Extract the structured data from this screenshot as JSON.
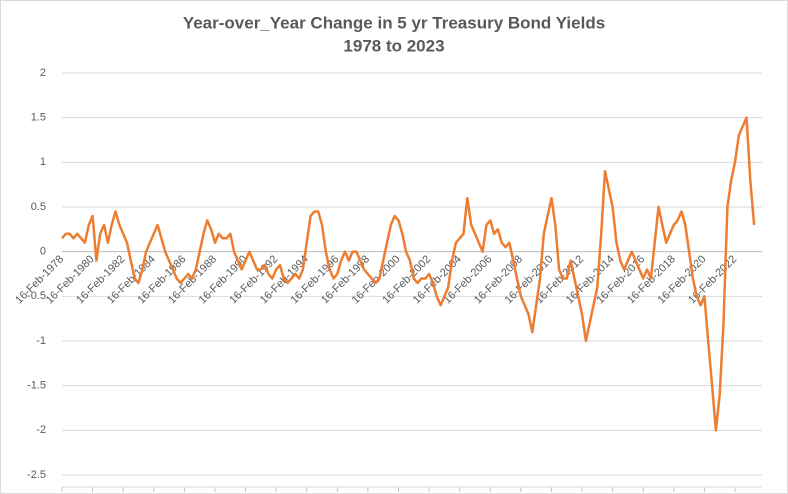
{
  "chart_data": {
    "type": "line",
    "title": "Year-over_Year Change in 5 yr Treasury Bond Yields",
    "subtitle": "1978 to 2023",
    "color": "#ed7d31",
    "grid": true,
    "ylim": [
      -2.5,
      2
    ],
    "yticks": [
      2,
      1.5,
      1,
      0.5,
      0,
      -0.5,
      -1,
      -1.5,
      -2,
      -2.5
    ],
    "categories": [
      "16-Feb-1978",
      null,
      null,
      null,
      null,
      null,
      null,
      null,
      "16-Feb-1980",
      null,
      null,
      null,
      null,
      null,
      null,
      null,
      "16-Feb-1982",
      null,
      null,
      null,
      null,
      null,
      null,
      null,
      "16-Feb-1984",
      null,
      null,
      null,
      null,
      null,
      null,
      null,
      "16-Feb-1986",
      null,
      null,
      null,
      null,
      null,
      null,
      null,
      "16-Feb-1988",
      null,
      null,
      null,
      null,
      null,
      null,
      null,
      "16-Feb-1990",
      null,
      null,
      null,
      null,
      null,
      null,
      null,
      "16-Feb-1992",
      null,
      null,
      null,
      null,
      null,
      null,
      null,
      "16-Feb-1994",
      null,
      null,
      null,
      null,
      null,
      null,
      null,
      "16-Feb-1996",
      null,
      null,
      null,
      null,
      null,
      null,
      null,
      "16-Feb-1998",
      null,
      null,
      null,
      null,
      null,
      null,
      null,
      "16-Feb-2000",
      null,
      null,
      null,
      null,
      null,
      null,
      null,
      "16-Feb-2002",
      null,
      null,
      null,
      null,
      null,
      null,
      null,
      "16-Feb-2004",
      null,
      null,
      null,
      null,
      null,
      null,
      null,
      "16-Feb-2006",
      null,
      null,
      null,
      null,
      null,
      null,
      null,
      "16-Feb-2008",
      null,
      null,
      null,
      null,
      null,
      null,
      null,
      "16-Feb-2010",
      null,
      null,
      null,
      null,
      null,
      null,
      null,
      "16-Feb-2012",
      null,
      null,
      null,
      null,
      null,
      null,
      null,
      "16-Feb-2014",
      null,
      null,
      null,
      null,
      null,
      null,
      null,
      "16-Feb-2016",
      null,
      null,
      null,
      null,
      null,
      null,
      null,
      "16-Feb-2018",
      null,
      null,
      null,
      null,
      null,
      null,
      null,
      "16-Feb-2020",
      null,
      null,
      null,
      null,
      null,
      null,
      null,
      "16-Feb-2022",
      null,
      null,
      null,
      null,
      null
    ],
    "values": [
      0.15,
      0.2,
      0.2,
      0.15,
      0.2,
      0.15,
      0.1,
      0.3,
      0.4,
      -0.1,
      0.2,
      0.3,
      0.1,
      0.3,
      0.45,
      0.3,
      0.2,
      0.1,
      -0.1,
      -0.3,
      -0.35,
      -0.2,
      0,
      0.1,
      0.2,
      0.3,
      0.15,
      0,
      -0.1,
      -0.2,
      -0.3,
      -0.35,
      -0.3,
      -0.25,
      -0.3,
      -0.2,
      0,
      0.2,
      0.35,
      0.25,
      0.1,
      0.2,
      0.15,
      0.15,
      0.2,
      0,
      -0.1,
      -0.2,
      -0.1,
      0,
      -0.1,
      -0.2,
      -0.2,
      -0.15,
      -0.25,
      -0.3,
      -0.2,
      -0.15,
      -0.3,
      -0.35,
      -0.3,
      -0.25,
      -0.3,
      -0.2,
      0.1,
      0.4,
      0.45,
      0.45,
      0.3,
      0,
      -0.2,
      -0.3,
      -0.25,
      -0.1,
      0,
      -0.1,
      0,
      0,
      -0.1,
      -0.2,
      -0.25,
      -0.3,
      -0.35,
      -0.3,
      -0.1,
      0.1,
      0.3,
      0.4,
      0.35,
      0.2,
      0,
      -0.1,
      -0.3,
      -0.35,
      -0.3,
      -0.3,
      -0.25,
      -0.35,
      -0.5,
      -0.6,
      -0.5,
      -0.4,
      -0.1,
      0.1,
      0.15,
      0.2,
      0.6,
      0.3,
      0.2,
      0.1,
      0,
      0.3,
      0.35,
      0.2,
      0.25,
      0.1,
      0.05,
      0.1,
      -0.1,
      -0.3,
      -0.5,
      -0.6,
      -0.7,
      -0.9,
      -0.6,
      -0.3,
      0.2,
      0.4,
      0.6,
      0.3,
      -0.2,
      -0.3,
      -0.3,
      -0.1,
      -0.3,
      -0.5,
      -0.7,
      -1.0,
      -0.8,
      -0.6,
      -0.4,
      0.2,
      0.9,
      0.7,
      0.5,
      0.1,
      -0.1,
      -0.2,
      -0.1,
      0,
      -0.1,
      -0.2,
      -0.3,
      -0.2,
      -0.3,
      0.1,
      0.5,
      0.3,
      0.1,
      0.2,
      0.3,
      0.35,
      0.45,
      0.3,
      0,
      -0.3,
      -0.5,
      -0.6,
      -0.5,
      -1.0,
      -1.5,
      -2.0,
      -1.6,
      -0.8,
      0.5,
      0.8,
      1.0,
      1.3,
      1.4,
      1.5,
      0.8,
      0.3
    ]
  }
}
